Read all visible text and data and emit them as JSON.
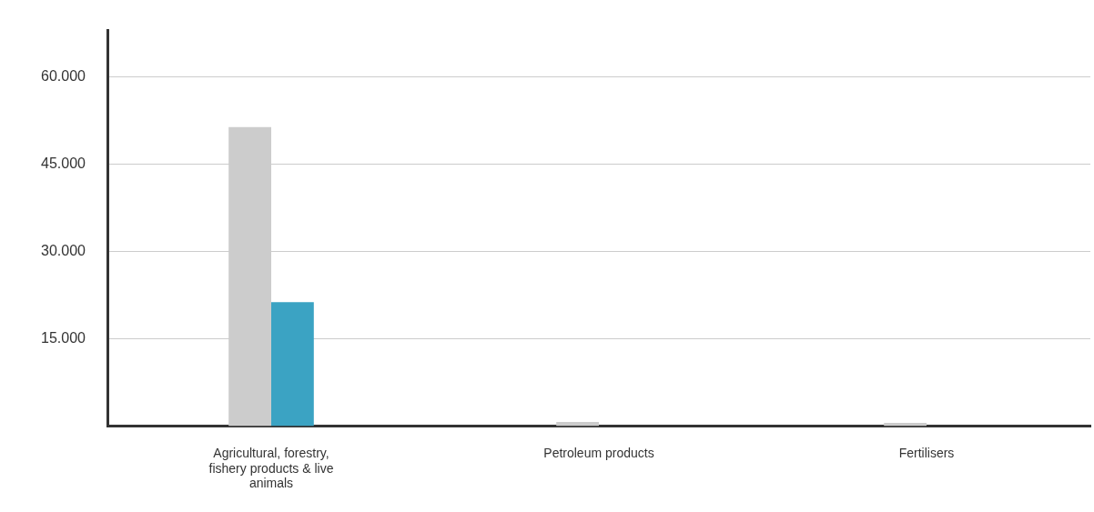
{
  "chart_data": {
    "type": "bar",
    "categories": [
      "Agricultural, forestry, fishery products & live animals",
      "Petroleum products",
      "Fertilisers"
    ],
    "series": [
      {
        "color": "#cccccc",
        "values": [
          51400,
          700,
          550
        ]
      },
      {
        "color": "#3ba3c3",
        "values": [
          21300,
          0,
          0
        ]
      }
    ],
    "ylim": [
      0,
      68000
    ],
    "yticks": [
      {
        "value": 15000,
        "label": "15.000"
      },
      {
        "value": 30000,
        "label": "30.000"
      },
      {
        "value": 45000,
        "label": "45.000"
      },
      {
        "value": 60000,
        "label": "60.000"
      }
    ],
    "grid": "y",
    "legend": false
  }
}
